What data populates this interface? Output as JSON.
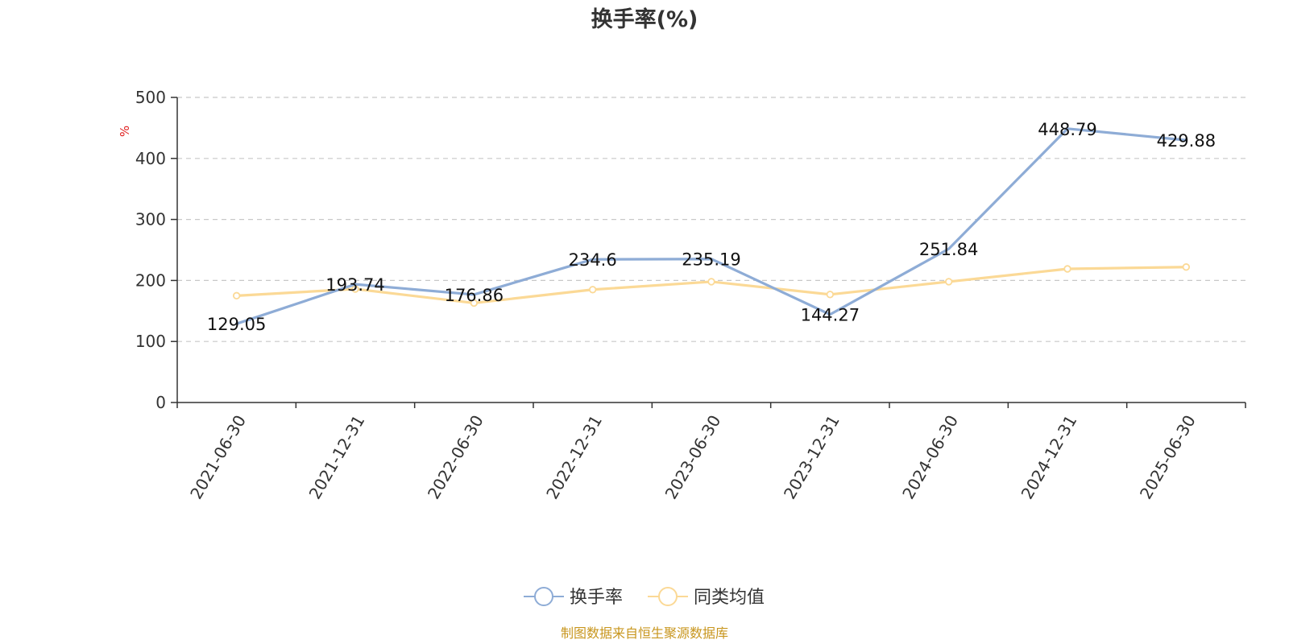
{
  "chart_data": {
    "type": "line",
    "title": "换手率(%)",
    "ylabel": "%",
    "xlabel": "",
    "categories": [
      "2021-06-30",
      "2021-12-31",
      "2022-06-30",
      "2022-12-31",
      "2023-06-30",
      "2023-12-31",
      "2024-06-30",
      "2024-12-31",
      "2025-06-30"
    ],
    "ylim": [
      0,
      500
    ],
    "yticks": [
      0,
      100,
      200,
      300,
      400,
      500
    ],
    "grid": true,
    "legend_position": "bottom-center",
    "series": [
      {
        "name": "换手率",
        "color": "#8eacd6",
        "values": [
          129.05,
          193.74,
          176.86,
          234.6,
          235.19,
          144.27,
          251.84,
          448.79,
          429.88
        ],
        "data_labels": [
          "129.05",
          "193.74",
          "176.86",
          "234.6",
          "235.19",
          "144.27",
          "251.84",
          "448.79",
          "429.88"
        ]
      },
      {
        "name": "同类均值",
        "color": "#fbd996",
        "values": [
          175,
          186,
          163,
          185,
          198,
          177,
          198,
          219,
          222
        ]
      }
    ],
    "source": "制图数据来自恒生聚源数据库"
  }
}
